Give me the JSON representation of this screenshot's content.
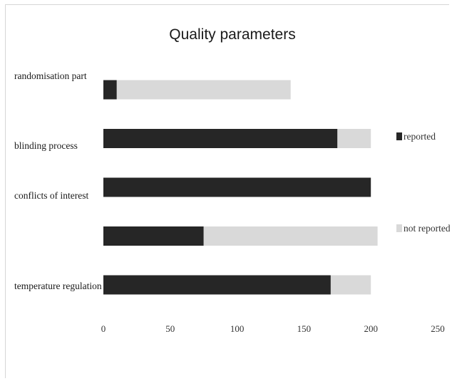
{
  "chart_data": {
    "type": "bar",
    "orientation": "horizontal",
    "stacked": true,
    "title": "Quality parameters",
    "xlabel": "",
    "ylabel": "",
    "categories": [
      "randomisation part",
      "blinding process",
      "conflicts of interest",
      "",
      "temperature regulation"
    ],
    "series": [
      {
        "name": "reported",
        "color": "#262626",
        "values": [
          10,
          175,
          200,
          75,
          170
        ]
      },
      {
        "name": "not reported",
        "color": "#d9d9d9",
        "values": [
          130,
          25,
          0,
          130,
          30
        ]
      }
    ],
    "xlim": [
      0,
      250
    ],
    "xticks": [
      "0",
      "50",
      "100",
      "150",
      "200",
      "250"
    ],
    "grid": false,
    "legend": "right"
  }
}
